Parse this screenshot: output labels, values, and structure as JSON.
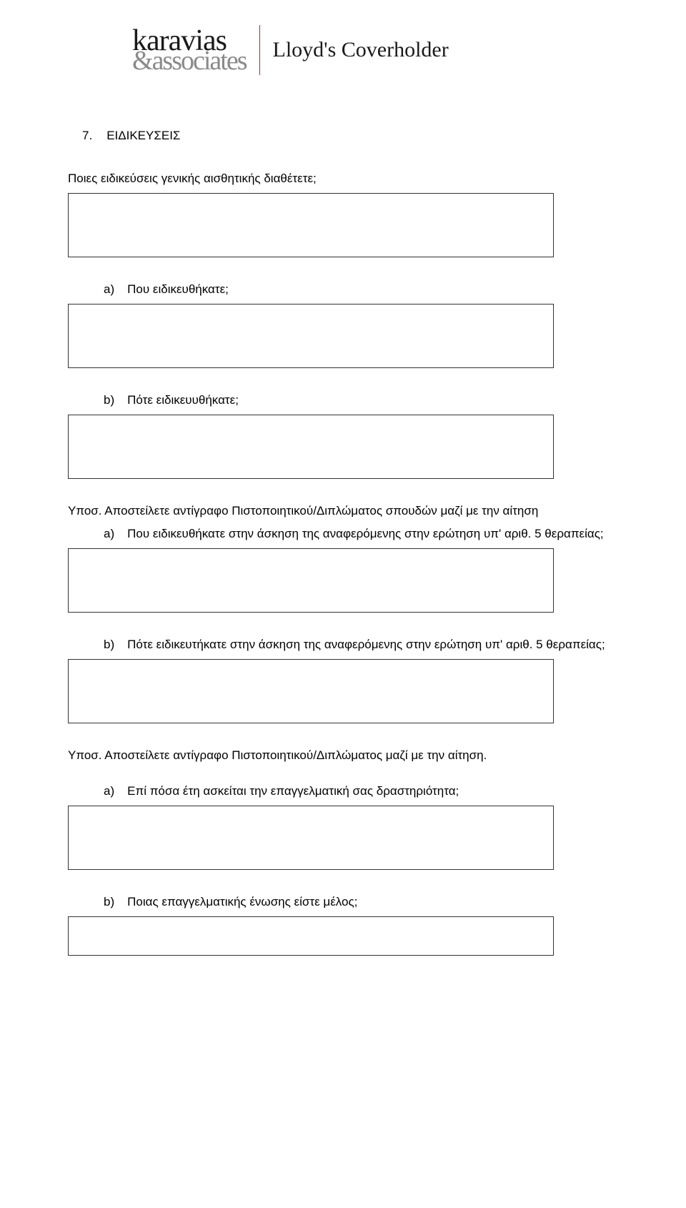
{
  "header": {
    "logo_top": "karavias",
    "logo_bottom_amp": "&",
    "logo_bottom_text": "associates",
    "logo_right": "Lloyd's Coverholder"
  },
  "section": {
    "number": "7.",
    "title": "ΕΙΔΙΚΕΥΣΕΙΣ"
  },
  "questions": {
    "q1": "Ποιες ειδικεύσεις γενικής αισθητικής διαθέτετε;",
    "q1a_marker": "a)",
    "q1a_text": "Που ειδικευθήκατε;",
    "q1b_marker": "b)",
    "q1b_text": "Πότε ειδικευυθήκατε;",
    "note1": "Υποσ. Αποστείλετε αντίγραφο Πιστοποιητικού/Διπλώματος σπουδών μαζί με την αίτηση",
    "q2a_marker": "a)",
    "q2a_text": "Που ειδικευθήκατε στην άσκηση της αναφερόμενης στην ερώτηση υπ' αριθ. 5 θεραπείας;",
    "q2b_marker": "b)",
    "q2b_text": "Πότε ειδικευτήκατε στην άσκηση της αναφερόμενης στην ερώτηση υπ' αριθ. 5 θεραπείας;",
    "note2": "Υποσ. Αποστείλετε αντίγραφο Πιστοποιητικού/Διπλώματος μαζί με την αίτηση.",
    "q3a_marker": "a)",
    "q3a_text": "Επί πόσα έτη ασκείται την επαγγελματική σας δραστηριότητα;",
    "q3b_marker": "b)",
    "q3b_text": "Ποιας επαγγελματικής ένωσης είστε μέλος;"
  },
  "colors": {
    "text": "#000000",
    "background": "#ffffff",
    "border": "#333333",
    "logo_dark": "#1a1a1a",
    "logo_gray": "#8a8a8a",
    "divider": "#8b3a3a"
  }
}
